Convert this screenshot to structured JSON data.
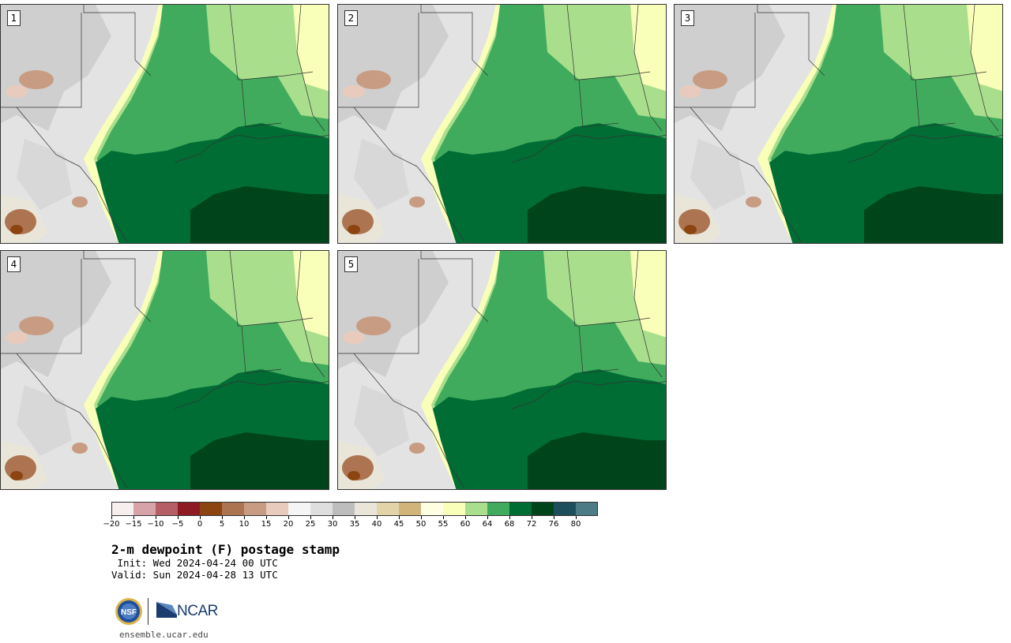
{
  "panels": [
    {
      "label": "1"
    },
    {
      "label": "2"
    },
    {
      "label": "3"
    },
    {
      "label": "4"
    },
    {
      "label": "5"
    }
  ],
  "colorbar": {
    "colors": [
      "#f7eeee",
      "#d6a3a9",
      "#b55e66",
      "#8e1a24",
      "#8c4510",
      "#ad7452",
      "#c89c82",
      "#e8cbbd",
      "#f5f5f5",
      "#dedede",
      "#bdbdbd",
      "#e9e6d9",
      "#e2d3a8",
      "#d0b47a",
      "#ffffe4",
      "#f9ffb8",
      "#a9de8d",
      "#41ab5d",
      "#006d35",
      "#00441b",
      "#1c4e5c",
      "#4b7b85"
    ],
    "ticks": [
      "−20",
      "−15",
      "−10",
      "−5",
      "0",
      "5",
      "10",
      "15",
      "20",
      "25",
      "30",
      "35",
      "40",
      "45",
      "50",
      "55",
      "60",
      "64",
      "68",
      "72",
      "76",
      "80"
    ]
  },
  "title": "2-m dewpoint (F) postage stamp",
  "init": " Init: Wed 2024-04-24 00 UTC",
  "valid": "Valid: Sun 2024-04-28 13 UTC",
  "logos": {
    "nsf": "NSF",
    "ncar": "NCAR"
  },
  "website": "ensemble.ucar.edu"
}
